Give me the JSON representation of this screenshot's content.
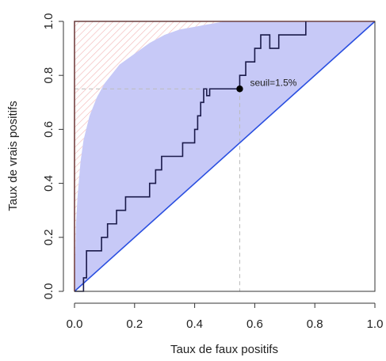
{
  "chart_data": {
    "type": "line",
    "xlabel": "Taux de faux positifs",
    "ylabel": "Taux de vrais positifs",
    "xlim": [
      0,
      1
    ],
    "ylim": [
      0,
      1
    ],
    "xticks": [
      "0.0",
      "0.2",
      "0.4",
      "0.6",
      "0.8",
      "1.0"
    ],
    "yticks": [
      "0.0",
      "0.2",
      "0.4",
      "0.6",
      "0.8",
      "1.0"
    ],
    "grid": false,
    "series": [
      {
        "role": "empirical ROC step curve",
        "color": "#1a1a4a",
        "x": [
          0,
          0.03,
          0.03,
          0.04,
          0.04,
          0.09,
          0.09,
          0.11,
          0.11,
          0.14,
          0.14,
          0.17,
          0.17,
          0.25,
          0.25,
          0.27,
          0.27,
          0.29,
          0.29,
          0.36,
          0.36,
          0.4,
          0.4,
          0.41,
          0.41,
          0.42,
          0.42,
          0.43,
          0.43,
          0.44,
          0.44,
          0.45,
          0.45,
          0.55,
          0.55,
          0.57,
          0.57,
          0.6,
          0.6,
          0.62,
          0.62,
          0.65,
          0.65,
          0.68,
          0.68,
          0.77,
          0.77
        ],
        "y": [
          0,
          0,
          0.05,
          0.05,
          0.15,
          0.15,
          0.2,
          0.2,
          0.25,
          0.25,
          0.3,
          0.3,
          0.35,
          0.35,
          0.4,
          0.4,
          0.45,
          0.45,
          0.5,
          0.5,
          0.55,
          0.55,
          0.6,
          0.6,
          0.65,
          0.65,
          0.7,
          0.7,
          0.75,
          0.75,
          0.725,
          0.725,
          0.75,
          0.75,
          0.8,
          0.8,
          0.85,
          0.85,
          0.9,
          0.9,
          0.95,
          0.95,
          0.9,
          0.9,
          0.95,
          0.95,
          1.0
        ]
      },
      {
        "role": "smooth binormal ROC curve (upper bound of blue region)",
        "color": "#c7c9f7",
        "x": [
          0,
          0.005,
          0.01,
          0.02,
          0.03,
          0.05,
          0.075,
          0.1,
          0.15,
          0.2,
          0.25,
          0.3,
          0.35,
          0.4,
          0.45,
          0.5,
          0.6,
          1.0
        ],
        "y": [
          0,
          0.25,
          0.35,
          0.48,
          0.56,
          0.65,
          0.72,
          0.77,
          0.84,
          0.88,
          0.92,
          0.95,
          0.97,
          0.98,
          0.99,
          1.0,
          1.0,
          1.0
        ]
      },
      {
        "role": "chance diagonal",
        "color": "#2a4fe0",
        "x": [
          0,
          1
        ],
        "y": [
          0,
          1
        ]
      },
      {
        "role": "perfect classifier boundary",
        "color": "#e05a5a",
        "x": [
          0,
          0,
          1
        ],
        "y": [
          0,
          1,
          1
        ]
      }
    ],
    "highlight_point": {
      "x": 0.55,
      "y": 0.75,
      "label": "seuil=1.5%"
    },
    "colors": {
      "region_fill": "#c7c9f7",
      "hatch": "#f2b7b7",
      "step_curve": "#1a1a4a",
      "diagonal": "#2a4fe0",
      "perfect": "#e05a5a",
      "guide": "#bbbbbb"
    }
  }
}
